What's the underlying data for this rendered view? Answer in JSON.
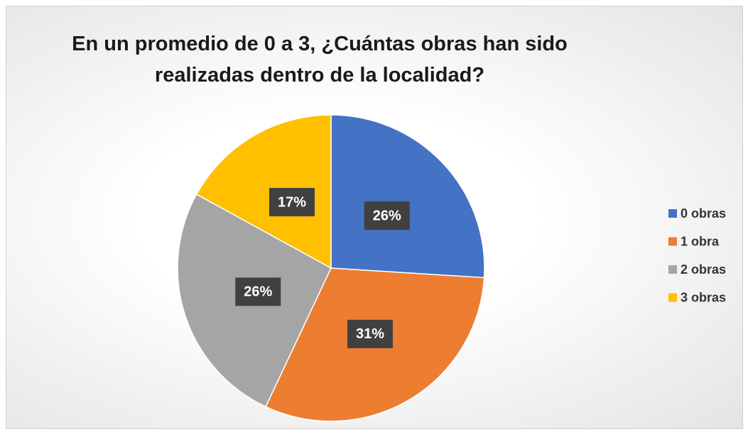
{
  "chart_data": {
    "type": "pie",
    "title": "En un promedio de 0 a 3, ¿Cuántas obras han sido realizadas dentro de la localidad?",
    "categories": [
      "0 obras",
      "1 obra",
      "2 obras",
      "3 obras"
    ],
    "values": [
      26,
      31,
      26,
      17
    ],
    "value_labels": [
      "26%",
      "31%",
      "26%",
      "17%"
    ],
    "colors": [
      "#4472c4",
      "#ed7d31",
      "#a5a5a5",
      "#ffc000"
    ],
    "legend": "right"
  }
}
